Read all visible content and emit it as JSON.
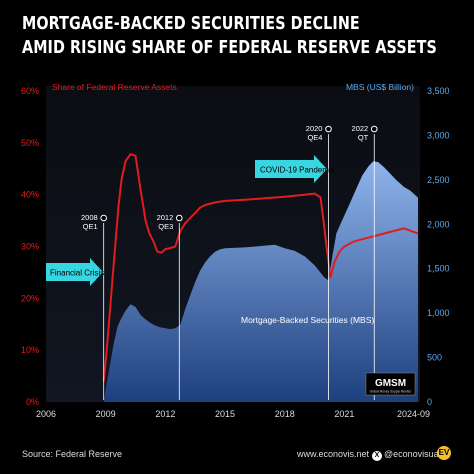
{
  "header": {
    "title_line1": "MORTGAGE-BACKED SECURITIES DECLINE",
    "title_line2": "AMID RISING SHARE OF FEDERAL RESERVE ASSETS"
  },
  "footer": {
    "source": "Source: Federal Reserve",
    "website": "www.econovis.net",
    "social": "@econovisuals",
    "logo_text": "EV"
  },
  "badge": {
    "main": "GMSM",
    "sub": "Global Money Supply Monitor"
  },
  "colors": {
    "share_line": "#e11c1c",
    "mbs_area_top": "#8fb4ec",
    "mbs_area_bottom": "#1d3f7e",
    "callout": "#38d6e0",
    "panel": "#0c0f16"
  },
  "chart_data": {
    "type": "area",
    "left_axis": {
      "label": "Share of Federal Reserve Assets",
      "ticks": [
        "0%",
        "10%",
        "20%",
        "30%",
        "40%",
        "50%",
        "60%"
      ],
      "range": [
        0,
        60
      ]
    },
    "right_axis": {
      "label": "MBS (US$ Billion)",
      "ticks": [
        "0",
        "500",
        "1,000",
        "1,500",
        "2,000",
        "2,500",
        "3,000",
        "3,500"
      ],
      "range": [
        0,
        3500
      ]
    },
    "x_axis": {
      "ticks": [
        "2006",
        "2009",
        "2012",
        "2015",
        "2018",
        "2021",
        "2024-09"
      ],
      "tick_values": [
        2006,
        2009,
        2012,
        2015,
        2018,
        2021,
        2024.7
      ],
      "range": [
        2006,
        2024.8
      ]
    },
    "series": [
      {
        "name": "Mortgage-Backed Securities (MBS)",
        "type": "area",
        "axis": "right",
        "points": [
          [
            2008.9,
            0
          ],
          [
            2009.0,
            150
          ],
          [
            2009.2,
            400
          ],
          [
            2009.4,
            650
          ],
          [
            2009.6,
            850
          ],
          [
            2009.8,
            950
          ],
          [
            2010.0,
            1030
          ],
          [
            2010.25,
            1100
          ],
          [
            2010.5,
            1070
          ],
          [
            2010.75,
            980
          ],
          [
            2011.0,
            930
          ],
          [
            2011.25,
            890
          ],
          [
            2011.5,
            860
          ],
          [
            2011.75,
            840
          ],
          [
            2012.0,
            830
          ],
          [
            2012.25,
            820
          ],
          [
            2012.5,
            830
          ],
          [
            2012.75,
            870
          ],
          [
            2013.0,
            1050
          ],
          [
            2013.25,
            1200
          ],
          [
            2013.5,
            1350
          ],
          [
            2013.75,
            1480
          ],
          [
            2014.0,
            1570
          ],
          [
            2014.25,
            1640
          ],
          [
            2014.5,
            1690
          ],
          [
            2014.75,
            1720
          ],
          [
            2015.0,
            1730
          ],
          [
            2016.0,
            1740
          ],
          [
            2017.0,
            1760
          ],
          [
            2017.5,
            1770
          ],
          [
            2018.0,
            1730
          ],
          [
            2018.5,
            1700
          ],
          [
            2019.0,
            1640
          ],
          [
            2019.5,
            1540
          ],
          [
            2019.75,
            1470
          ],
          [
            2020.0,
            1400
          ],
          [
            2020.2,
            1370
          ],
          [
            2020.4,
            1650
          ],
          [
            2020.6,
            1900
          ],
          [
            2020.8,
            2000
          ],
          [
            2021.0,
            2100
          ],
          [
            2021.3,
            2250
          ],
          [
            2021.6,
            2400
          ],
          [
            2021.9,
            2550
          ],
          [
            2022.2,
            2650
          ],
          [
            2022.45,
            2710
          ],
          [
            2022.7,
            2700
          ],
          [
            2023.0,
            2640
          ],
          [
            2023.3,
            2570
          ],
          [
            2023.6,
            2500
          ],
          [
            2024.0,
            2420
          ],
          [
            2024.3,
            2380
          ],
          [
            2024.7,
            2300
          ]
        ]
      },
      {
        "name": "Share of Federal Reserve Assets",
        "type": "line",
        "axis": "left",
        "points": [
          [
            2008.9,
            4
          ],
          [
            2009.05,
            10
          ],
          [
            2009.2,
            17
          ],
          [
            2009.35,
            24
          ],
          [
            2009.5,
            31
          ],
          [
            2009.65,
            38
          ],
          [
            2009.8,
            43
          ],
          [
            2010.0,
            46.5
          ],
          [
            2010.25,
            47.8
          ],
          [
            2010.5,
            47.5
          ],
          [
            2010.6,
            45
          ],
          [
            2010.75,
            41
          ],
          [
            2010.9,
            37.5
          ],
          [
            2011.0,
            35
          ],
          [
            2011.2,
            32.5
          ],
          [
            2011.4,
            31
          ],
          [
            2011.6,
            29
          ],
          [
            2011.8,
            28.8
          ],
          [
            2012.0,
            29.5
          ],
          [
            2012.25,
            29.7
          ],
          [
            2012.5,
            30
          ],
          [
            2012.75,
            33
          ],
          [
            2013.0,
            34.5
          ],
          [
            2013.25,
            35.5
          ],
          [
            2013.5,
            36.5
          ],
          [
            2013.75,
            37.5
          ],
          [
            2014.0,
            38
          ],
          [
            2014.5,
            38.5
          ],
          [
            2015.0,
            38.8
          ],
          [
            2016.0,
            39
          ],
          [
            2017.0,
            39.3
          ],
          [
            2018.0,
            39.6
          ],
          [
            2019.0,
            40
          ],
          [
            2019.5,
            40.2
          ],
          [
            2019.8,
            39.5
          ],
          [
            2019.95,
            35
          ],
          [
            2020.1,
            30
          ],
          [
            2020.3,
            24
          ],
          [
            2020.5,
            27
          ],
          [
            2020.75,
            29
          ],
          [
            2021.0,
            30
          ],
          [
            2021.5,
            31
          ],
          [
            2022.0,
            31.5
          ],
          [
            2022.5,
            32
          ],
          [
            2023.0,
            32.5
          ],
          [
            2023.5,
            33
          ],
          [
            2024.0,
            33.5
          ],
          [
            2024.7,
            32.5
          ]
        ]
      }
    ],
    "annotations": [
      {
        "label": "2008",
        "sub": "QE1",
        "x": 2008.9
      },
      {
        "label": "2012",
        "sub": "QE3",
        "x": 2012.7
      },
      {
        "label": "2020",
        "sub": "QE4",
        "x": 2020.2
      },
      {
        "label": "2022",
        "sub": "QT",
        "x": 2022.5
      }
    ],
    "callouts": [
      {
        "text": "Financial Crisis"
      },
      {
        "text": "COVID-19 Pandemic"
      }
    ],
    "grid": false,
    "legend": "inline-labels"
  }
}
